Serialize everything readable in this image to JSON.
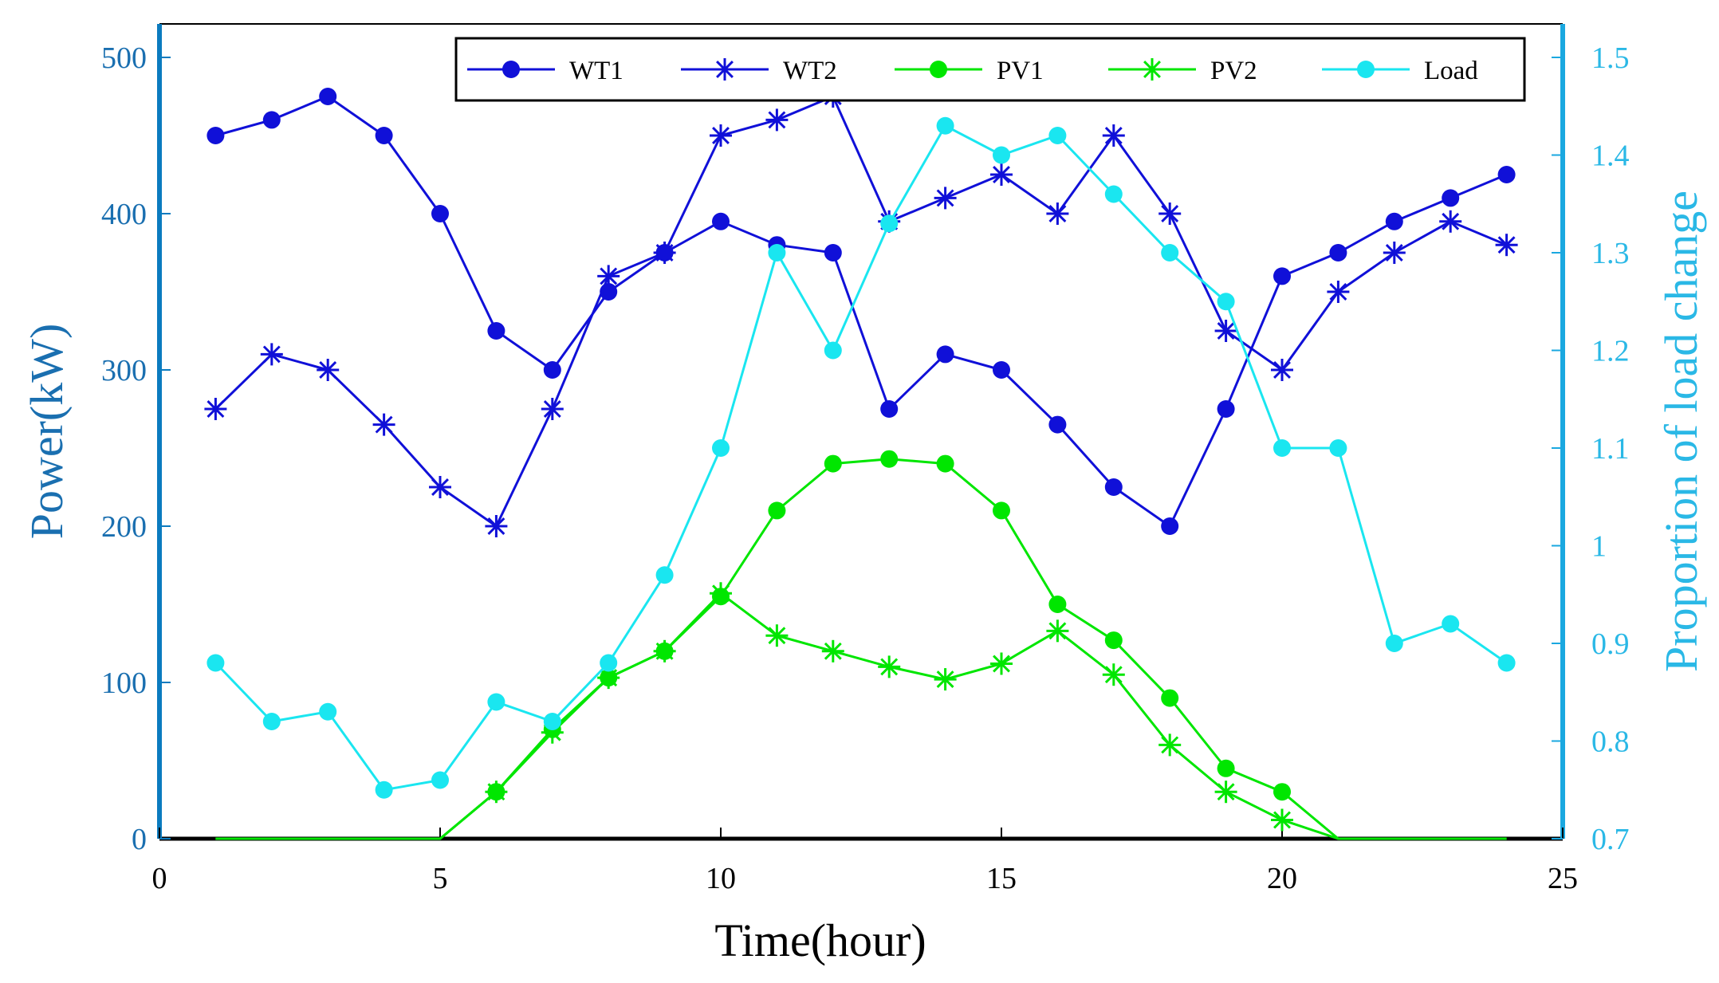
{
  "chart_data": {
    "type": "line",
    "title": "",
    "xlabel": "Time(hour)",
    "ylabel_left": "Power(kW)",
    "ylabel_right": "Proportion of load change",
    "xlim": [
      0,
      25
    ],
    "ylim_left": [
      0,
      500
    ],
    "ylim_right": [
      0.7,
      1.5
    ],
    "x_ticks": [
      "0",
      "5",
      "10",
      "15",
      "20",
      "25"
    ],
    "y_ticks_left": [
      "0",
      "100",
      "200",
      "300",
      "400",
      "500"
    ],
    "y_ticks_right": [
      "0.7",
      "0.8",
      "0.9",
      "1",
      "1.1",
      "1.2",
      "1.3",
      "1.4",
      "1.5"
    ],
    "x": [
      1,
      2,
      3,
      4,
      5,
      6,
      7,
      8,
      9,
      10,
      11,
      12,
      13,
      14,
      15,
      16,
      17,
      18,
      19,
      20,
      21,
      22,
      23,
      24
    ],
    "series": [
      {
        "name": "WT1",
        "axis": "left",
        "color": "#1010d8",
        "marker": "circle",
        "values": [
          450,
          460,
          475,
          450,
          400,
          325,
          300,
          350,
          375,
          395,
          380,
          375,
          275,
          310,
          300,
          265,
          225,
          200,
          275,
          360,
          375,
          395,
          410,
          425
        ]
      },
      {
        "name": "WT2",
        "axis": "left",
        "color": "#1010d8",
        "marker": "star",
        "values": [
          275,
          310,
          300,
          265,
          225,
          200,
          275,
          360,
          375,
          450,
          460,
          475,
          395,
          410,
          425,
          400,
          450,
          400,
          325,
          300,
          350,
          375,
          395,
          380
        ]
      },
      {
        "name": "PV1",
        "axis": "left",
        "color": "#00e600",
        "marker": "circle",
        "values": [
          0,
          0,
          0,
          0,
          0,
          30,
          70,
          103,
          120,
          155,
          210,
          240,
          243,
          240,
          210,
          150,
          127,
          90,
          45,
          30,
          0,
          0,
          0,
          0
        ]
      },
      {
        "name": "PV2",
        "axis": "left",
        "color": "#00e600",
        "marker": "star",
        "values": [
          0,
          0,
          0,
          0,
          0,
          30,
          68,
          103,
          120,
          157,
          130,
          120,
          110,
          102,
          112,
          133,
          105,
          60,
          30,
          12,
          0,
          0,
          0,
          0
        ]
      },
      {
        "name": "Load",
        "axis": "right",
        "color": "#1ae6f0",
        "marker": "circle",
        "values": [
          0.88,
          0.82,
          0.83,
          0.75,
          0.76,
          0.84,
          0.82,
          0.88,
          0.97,
          1.1,
          1.3,
          1.2,
          1.33,
          1.43,
          1.4,
          1.42,
          1.36,
          1.3,
          1.25,
          1.1,
          1.1,
          0.9,
          0.92,
          0.88
        ]
      }
    ],
    "legend": {
      "location": "top-center",
      "entries": [
        "WT1",
        "WT2",
        "PV1",
        "PV2",
        "Load"
      ]
    },
    "colors": {
      "left_axis": "#1a6fb0",
      "right_axis": "#2ab8e6",
      "left_spine": "#0b7bbf",
      "right_spine": "#1aa8e0",
      "text": "#000000"
    }
  }
}
